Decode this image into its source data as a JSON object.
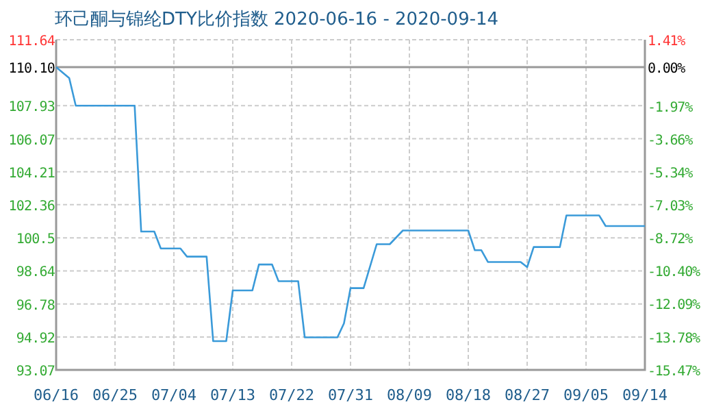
{
  "chart_data": {
    "type": "line",
    "title": "环己酮与锦纶DTY比价指数 2020-06-16 - 2020-09-14",
    "x": [
      "2020-06-16",
      "2020-06-18",
      "2020-06-19",
      "2020-06-28",
      "2020-06-29",
      "2020-07-01",
      "2020-07-02",
      "2020-07-05",
      "2020-07-06",
      "2020-07-09",
      "2020-07-10",
      "2020-07-12",
      "2020-07-13",
      "2020-07-16",
      "2020-07-17",
      "2020-07-19",
      "2020-07-20",
      "2020-07-23",
      "2020-07-24",
      "2020-07-29",
      "2020-07-30",
      "2020-07-31",
      "2020-08-02",
      "2020-08-04",
      "2020-08-06",
      "2020-08-08",
      "2020-08-18",
      "2020-08-19",
      "2020-08-20",
      "2020-08-21",
      "2020-08-26",
      "2020-08-27",
      "2020-08-28",
      "2020-09-01",
      "2020-09-02",
      "2020-09-07",
      "2020-09-08",
      "2020-09-14"
    ],
    "series": [
      {
        "color": "#3a9ad9",
        "values": [
          110.1,
          109.48,
          107.93,
          107.93,
          100.85,
          100.85,
          99.9,
          99.9,
          99.44,
          99.44,
          94.69,
          94.69,
          97.54,
          97.54,
          99.0,
          99.0,
          98.06,
          98.06,
          94.9,
          94.9,
          95.69,
          97.67,
          97.67,
          100.14,
          100.14,
          100.91,
          100.91,
          99.8,
          99.8,
          99.14,
          99.14,
          98.85,
          99.98,
          99.98,
          101.76,
          101.76,
          101.16,
          101.16
        ]
      }
    ],
    "xlim": [
      "2020-06-16",
      "2020-09-14"
    ],
    "xticks": [
      {
        "value": "2020-06-16",
        "label": "06/16"
      },
      {
        "value": "2020-06-25",
        "label": "06/25"
      },
      {
        "value": "2020-07-04",
        "label": "07/04"
      },
      {
        "value": "2020-07-13",
        "label": "07/13"
      },
      {
        "value": "2020-07-22",
        "label": "07/22"
      },
      {
        "value": "2020-07-31",
        "label": "07/31"
      },
      {
        "value": "2020-08-09",
        "label": "08/09"
      },
      {
        "value": "2020-08-18",
        "label": "08/18"
      },
      {
        "value": "2020-08-27",
        "label": "08/27"
      },
      {
        "value": "2020-09-05",
        "label": "09/05"
      },
      {
        "value": "2020-09-14",
        "label": "09/14"
      }
    ],
    "ylim": [
      93.07,
      111.64
    ],
    "yticks": [
      {
        "value": 93.07,
        "label": "93.07"
      },
      {
        "value": 94.92,
        "label": "94.92"
      },
      {
        "value": 96.78,
        "label": "96.78"
      },
      {
        "value": 98.64,
        "label": "98.64"
      },
      {
        "value": 100.5,
        "label": "100.5"
      },
      {
        "value": 102.36,
        "label": "102.36"
      },
      {
        "value": 104.21,
        "label": "104.21"
      },
      {
        "value": 106.07,
        "label": "106.07"
      },
      {
        "value": 107.93,
        "label": "107.93"
      },
      {
        "value": 110.1,
        "label": "110.10"
      },
      {
        "value": 111.64,
        "label": "111.64"
      }
    ],
    "y2lim": [
      -15.47,
      1.41
    ],
    "y2ticks": [
      {
        "value": -15.47,
        "label": "-15.47%"
      },
      {
        "value": -13.78,
        "label": "-13.78%"
      },
      {
        "value": -12.09,
        "label": "-12.09%"
      },
      {
        "value": -10.4,
        "label": "-10.40%"
      },
      {
        "value": -8.72,
        "label": "-8.72%"
      },
      {
        "value": -7.03,
        "label": "-7.03%"
      },
      {
        "value": -5.34,
        "label": "-5.34%"
      },
      {
        "value": -3.66,
        "label": "-3.66%"
      },
      {
        "value": -1.97,
        "label": "-1.97%"
      },
      {
        "value": 0,
        "label": "0.00%"
      },
      {
        "value": 1.41,
        "label": "1.41%"
      }
    ],
    "ref_lines": [
      {
        "axis": "y",
        "value": 110.1,
        "color": "#999999"
      }
    ],
    "grid": true,
    "marker": "none",
    "line_style": "solid"
  }
}
